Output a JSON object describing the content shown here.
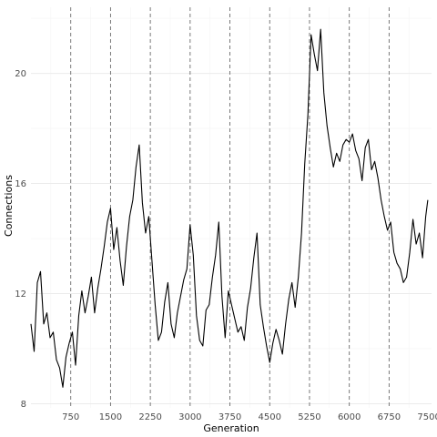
{
  "chart_data": {
    "type": "line",
    "xlabel": "Generation",
    "ylabel": "Connections",
    "xlim": [
      0,
      7550
    ],
    "ylim": [
      7.85,
      22.4
    ],
    "x_ticks": [
      750,
      1500,
      2250,
      3000,
      3750,
      4500,
      5250,
      6000,
      6750,
      7500
    ],
    "y_ticks": [
      8,
      12,
      16,
      20
    ],
    "vlines": [
      750,
      1500,
      2250,
      3000,
      3750,
      4500,
      5250,
      6000,
      6750
    ],
    "grid": true,
    "legend": "none",
    "series": [
      {
        "color": "#000000",
        "x": [
          0,
          60,
          120,
          180,
          240,
          300,
          360,
          420,
          480,
          540,
          600,
          660,
          720,
          780,
          840,
          900,
          960,
          1020,
          1080,
          1140,
          1200,
          1260,
          1320,
          1380,
          1440,
          1500,
          1560,
          1620,
          1680,
          1740,
          1800,
          1860,
          1920,
          1980,
          2040,
          2100,
          2160,
          2220,
          2280,
          2340,
          2400,
          2460,
          2520,
          2580,
          2640,
          2700,
          2760,
          2820,
          2880,
          2940,
          3000,
          3060,
          3120,
          3180,
          3240,
          3300,
          3360,
          3420,
          3480,
          3540,
          3600,
          3660,
          3720,
          3780,
          3840,
          3900,
          3960,
          4020,
          4080,
          4140,
          4200,
          4260,
          4320,
          4380,
          4440,
          4500,
          4560,
          4620,
          4680,
          4740,
          4800,
          4860,
          4920,
          4980,
          5040,
          5100,
          5160,
          5220,
          5280,
          5340,
          5400,
          5460,
          5520,
          5580,
          5640,
          5700,
          5760,
          5820,
          5880,
          5940,
          6000,
          6060,
          6120,
          6180,
          6240,
          6300,
          6360,
          6420,
          6480,
          6540,
          6600,
          6660,
          6720,
          6780,
          6840,
          6900,
          6960,
          7020,
          7080,
          7140,
          7200,
          7260,
          7320,
          7380,
          7440,
          7480
        ],
        "y": [
          10.9,
          9.9,
          12.4,
          12.8,
          10.9,
          11.3,
          10.4,
          10.6,
          9.6,
          9.3,
          8.6,
          9.7,
          10.2,
          10.6,
          9.4,
          11.2,
          12.1,
          11.3,
          11.9,
          12.6,
          11.3,
          12.2,
          12.9,
          13.7,
          14.6,
          15.1,
          13.6,
          14.4,
          13.2,
          12.3,
          13.7,
          14.8,
          15.4,
          16.6,
          17.4,
          15.3,
          14.2,
          14.8,
          13.2,
          11.6,
          10.3,
          10.6,
          11.7,
          12.4,
          10.9,
          10.4,
          11.3,
          11.9,
          12.5,
          12.9,
          14.5,
          13.4,
          11.2,
          10.3,
          10.1,
          11.4,
          11.6,
          12.6,
          13.4,
          14.6,
          11.9,
          10.4,
          12.1,
          11.6,
          11.1,
          10.6,
          10.8,
          10.3,
          11.5,
          12.2,
          13.3,
          14.2,
          11.6,
          10.8,
          10.1,
          9.5,
          10.2,
          10.7,
          10.3,
          9.8,
          10.9,
          11.8,
          12.4,
          11.5,
          12.6,
          14.2,
          16.7,
          18.5,
          21.4,
          20.7,
          20.1,
          21.6,
          19.3,
          18.1,
          17.3,
          16.6,
          17.1,
          16.8,
          17.4,
          17.6,
          17.5,
          17.8,
          17.2,
          16.9,
          16.1,
          17.3,
          17.6,
          16.5,
          16.8,
          16.2,
          15.4,
          14.8,
          14.3,
          14.6,
          13.5,
          13.1,
          12.9,
          12.4,
          12.6,
          13.5,
          14.7,
          13.8,
          14.2,
          13.3,
          14.8,
          15.4
        ]
      }
    ]
  }
}
